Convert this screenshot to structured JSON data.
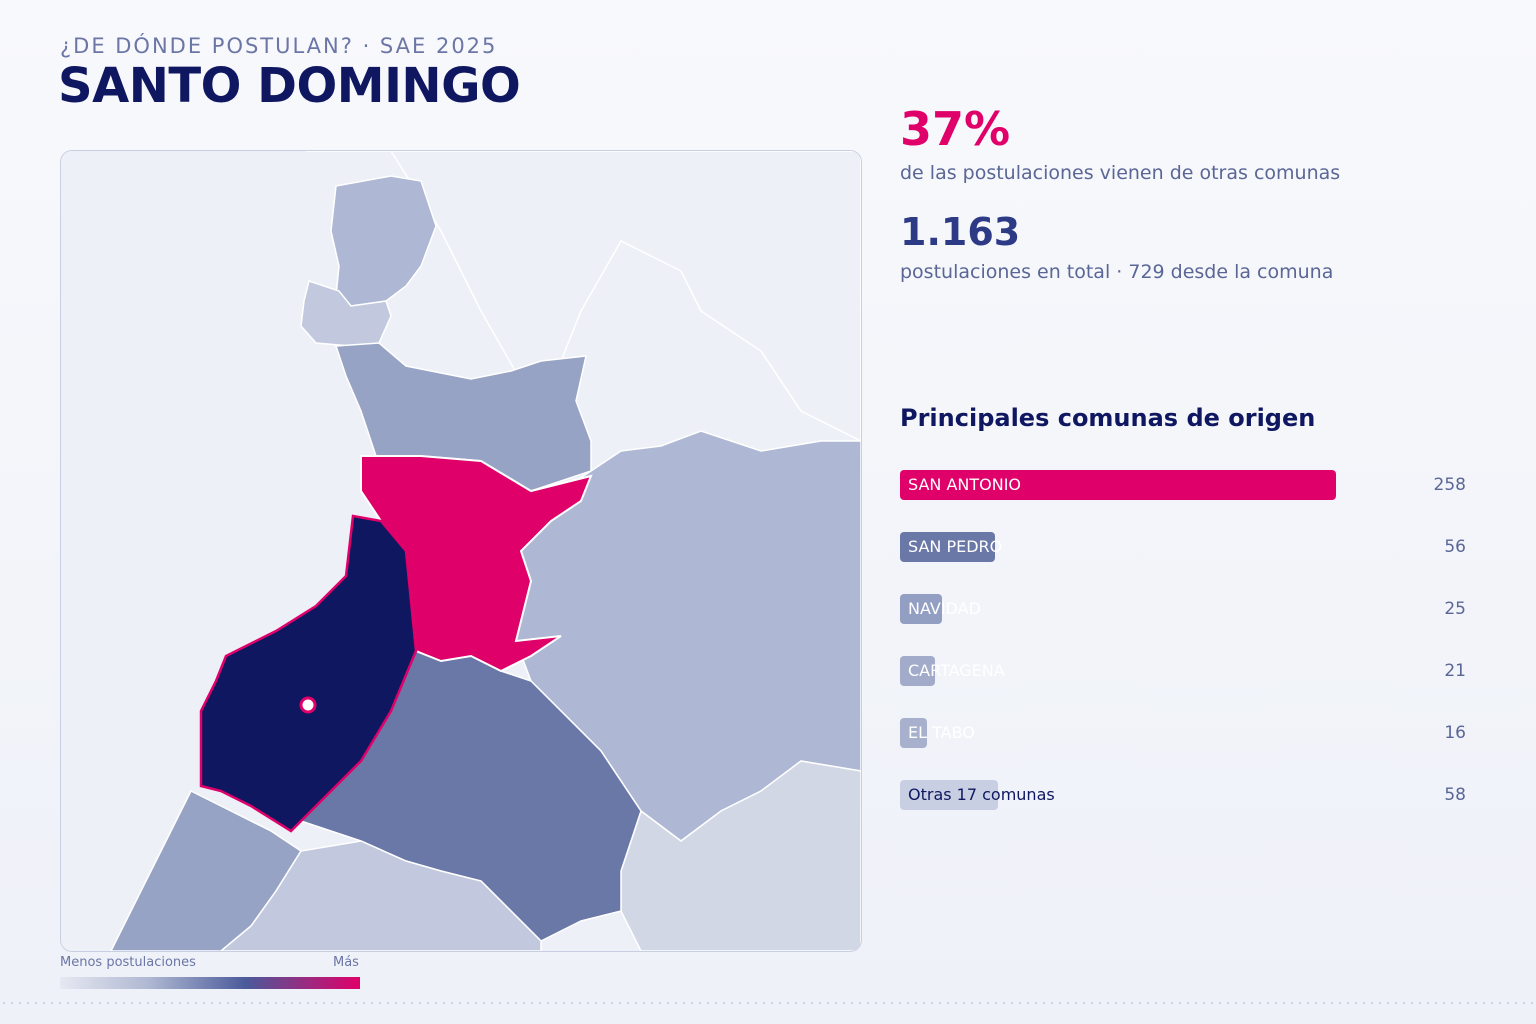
{
  "header": {
    "kicker": "¿DE DÓNDE POSTULAN? · SAE 2025",
    "title": "SANTO DOMINGO"
  },
  "stats": {
    "pct_value": "37%",
    "pct_desc": "de las postulaciones vienen de otras comunas",
    "total_value": "1.163",
    "total_desc": "postulaciones en total · 729 desde la comuna"
  },
  "ranking": {
    "title": "Principales comunas de origen",
    "max": 258,
    "items": [
      {
        "name": "SAN ANTONIO",
        "value": 258,
        "display": "258",
        "color": "#e0006a",
        "text": "light"
      },
      {
        "name": "SAN PEDRO",
        "value": 56,
        "display": "56",
        "color": "#6a78a8",
        "text": "light"
      },
      {
        "name": "NAVIDAD",
        "value": 25,
        "display": "25",
        "color": "#939fc2",
        "text": "light"
      },
      {
        "name": "CARTAGENA",
        "value": 21,
        "display": "21",
        "color": "#a2acca",
        "text": "light"
      },
      {
        "name": "EL TABO",
        "value": 16,
        "display": "16",
        "color": "#a7b0cc",
        "text": "light"
      },
      {
        "name": "Otras 17 comunas",
        "value": 58,
        "display": "58",
        "color": "#c9cfe3",
        "text": "dark"
      }
    ]
  },
  "legend": {
    "min_label": "Menos postulaciones",
    "max_label": "Más"
  },
  "map": {
    "colors": {
      "highlight": "#0e1760",
      "top_origin": "#e0006a",
      "mid": "#6a78a8",
      "mid_light": "#97a3c4",
      "light": "#aeb7d3",
      "lighter": "#c2c9df",
      "faint": "#d2d7e6",
      "none": "#eef0f7"
    }
  }
}
